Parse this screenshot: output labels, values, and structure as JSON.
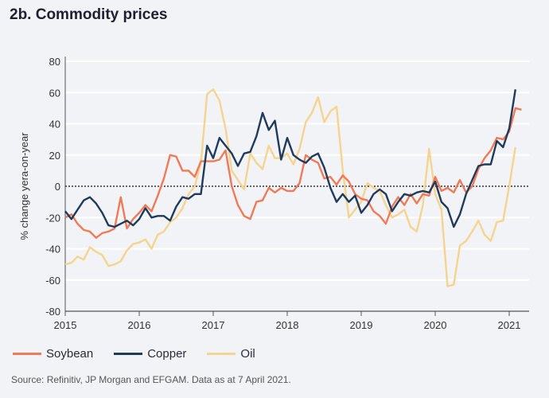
{
  "title": "2b. Commodity prices",
  "source": "Source: Refinitiv, JP Morgan and EFGAM. Data as at 7 April 2021.",
  "chart_data": {
    "type": "line",
    "title": "2b. Commodity prices",
    "xlabel": "",
    "ylabel": "% change yera-on-year",
    "ylim": [
      -80,
      80
    ],
    "yticks": [
      80,
      60,
      40,
      20,
      0,
      -20,
      -40,
      -60,
      -80
    ],
    "xticks": [
      "2015",
      "2016",
      "2017",
      "2018",
      "2019",
      "2020",
      "2021"
    ],
    "x_start": "2015-01",
    "frequency": "monthly",
    "reference_line": 0,
    "legend_position": "bottom-left",
    "series": [
      {
        "name": "Soybean",
        "color": "#f07a58",
        "values": [
          -20,
          -18,
          -24,
          -28,
          -29,
          -33,
          -30,
          -29,
          -27,
          -7,
          -27,
          -21,
          -17,
          -12,
          -16,
          -6,
          5,
          20,
          19,
          10,
          10,
          6,
          16,
          16,
          16,
          17,
          23,
          0,
          -12,
          -19,
          -21,
          -10,
          -9,
          -1,
          -4,
          -1,
          -3,
          -3,
          2,
          20,
          17,
          15,
          5,
          6,
          1,
          7,
          3,
          -5,
          -8,
          -9,
          -16,
          -19,
          -24,
          -13,
          -7,
          -12,
          -5,
          -11,
          -5,
          -6,
          6,
          -3,
          -1,
          -4,
          4,
          -4,
          0,
          11,
          18,
          23,
          31,
          30,
          35,
          50,
          49
        ]
      },
      {
        "name": "Copper",
        "color": "#1f3a5c",
        "values": [
          -16,
          -21,
          -15,
          -9,
          -7,
          -11,
          -17,
          -25,
          -26,
          -24,
          -22,
          -25,
          -21,
          -14,
          -20,
          -19,
          -19,
          -22,
          -13,
          -7,
          -8,
          -5,
          -5,
          26,
          18,
          31,
          26,
          21,
          13,
          21,
          22,
          32,
          47,
          36,
          42,
          17,
          31,
          20,
          17,
          15,
          19,
          21,
          12,
          -1,
          -10,
          -5,
          -10,
          -6,
          -17,
          -12,
          -5,
          -2,
          -5,
          -16,
          -10,
          -5,
          -6,
          -4,
          -3,
          -4,
          3,
          -10,
          -14,
          -26,
          -18,
          -5,
          4,
          13,
          14,
          14,
          29,
          25,
          37,
          62
        ]
      },
      {
        "name": "Oil",
        "color": "#f5d490",
        "values": [
          -50,
          -49,
          -45,
          -47,
          -39,
          -42,
          -44,
          -51,
          -50,
          -48,
          -41,
          -37,
          -36,
          -34,
          -40,
          -31,
          -29,
          -23,
          -20,
          -14,
          -5,
          0,
          15,
          59,
          62,
          55,
          37,
          10,
          4,
          -2,
          21,
          15,
          11,
          26,
          18,
          18,
          21,
          14,
          24,
          41,
          47,
          57,
          41,
          48,
          51,
          10,
          -20,
          -15,
          -10,
          2,
          -1,
          -3,
          -12,
          -20,
          -18,
          -15,
          -26,
          -29,
          -12,
          24,
          -5,
          -15,
          -64,
          -63,
          -38,
          -35,
          -29,
          -22,
          -31,
          -35,
          -23,
          -22,
          0,
          25
        ]
      }
    ]
  }
}
